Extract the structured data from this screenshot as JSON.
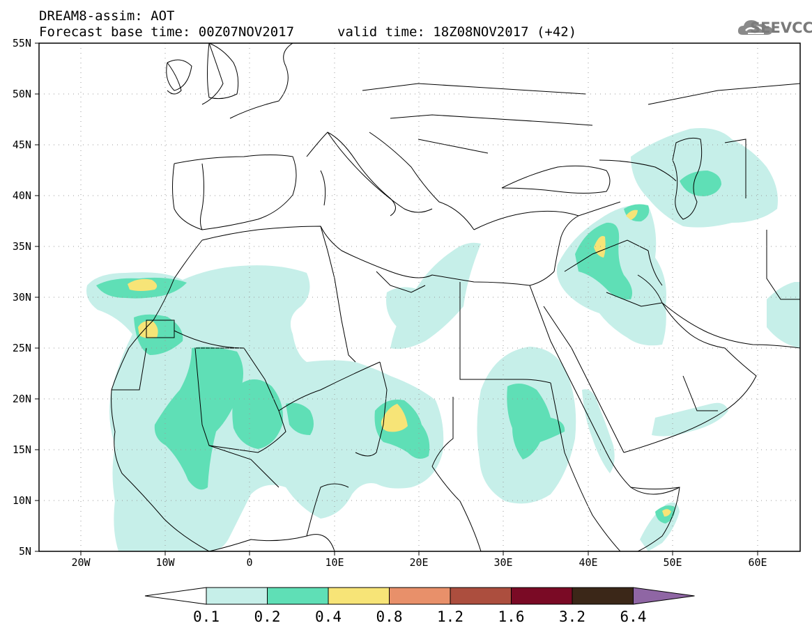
{
  "header": {
    "line1": "DREAM8-assim: AOT",
    "line2": "Forecast base time: 00Z07NOV2017",
    "line3": "valid time: 18Z08NOV2017 (+42)"
  },
  "logo": {
    "text": "SEEVCCC",
    "icon": "cloud-icon",
    "color": "#7a7a7a"
  },
  "map": {
    "lat_range": [
      5,
      55
    ],
    "lon_range": [
      -25,
      65
    ],
    "lat_labels": [
      "55N",
      "50N",
      "45N",
      "40N",
      "35N",
      "30N",
      "25N",
      "20N",
      "15N",
      "10N",
      "5N"
    ],
    "lon_labels": [
      "20W",
      "10W",
      "0",
      "10E",
      "20E",
      "30E",
      "40E",
      "50E",
      "60E"
    ],
    "grid": "dotted"
  },
  "colorbar": {
    "labels": [
      "0.1",
      "0.2",
      "0.4",
      "0.8",
      "1.2",
      "1.6",
      "3.2",
      "6.4"
    ],
    "colors": [
      "#ffffff",
      "#c6efe9",
      "#5fdfb6",
      "#f7e477",
      "#e8906a",
      "#ac4e3e",
      "#7a0a25",
      "#3b2718",
      "#8f66a4"
    ]
  }
}
